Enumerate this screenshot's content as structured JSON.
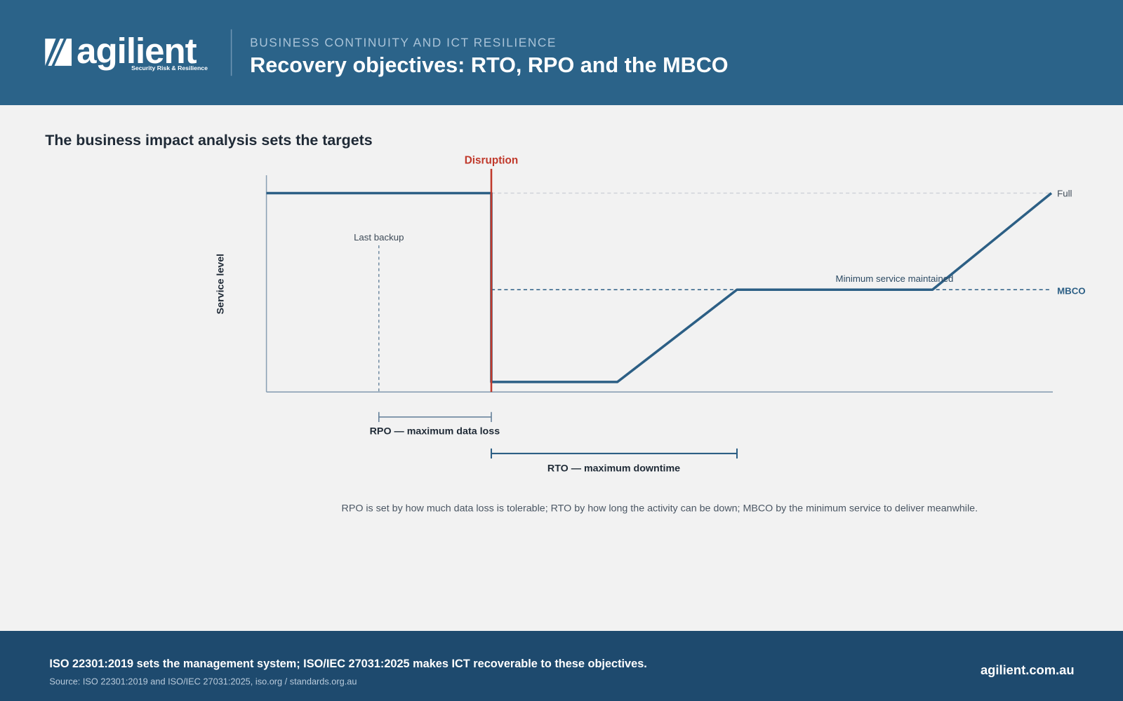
{
  "header": {
    "logo": {
      "name": "agilient",
      "tagline": "Security Risk & Resilience"
    },
    "eyebrow": "BUSINESS CONTINUITY AND ICT RESILIENCE",
    "title": "Recovery objectives: RTO, RPO and the MBCO"
  },
  "diagram": {
    "heading": "The business impact analysis sets the targets",
    "y_axis_label": "Service level",
    "labels": {
      "disruption": "Disruption",
      "last_backup": "Last backup",
      "full": "Full",
      "mbco": "MBCO",
      "minimum": "Minimum service maintained",
      "rpo": "RPO — maximum data loss",
      "rto": "RTO — maximum downtime"
    },
    "caption": "RPO is set by how much data loss is tolerable; RTO by how long the activity can be down; MBCO by the minimum service to deliver meanwhile."
  },
  "footer": {
    "statement": "ISO 22301:2019 sets the management system; ISO/IEC 27031:2025 makes ICT recoverable to these objectives.",
    "source": "Source: ISO 22301:2019 and ISO/IEC 27031:2025, iso.org / standards.org.au",
    "url": "agilient.com.au"
  }
}
